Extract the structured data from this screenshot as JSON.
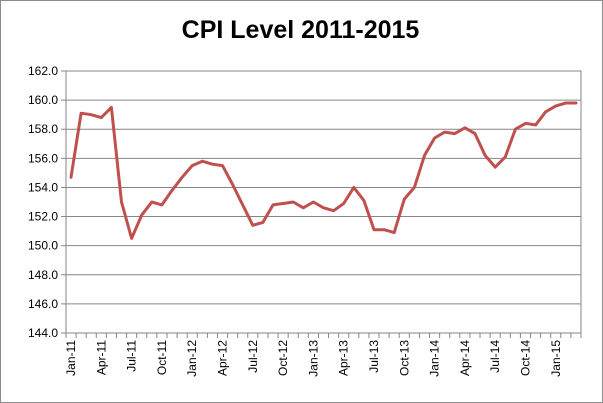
{
  "chart_data": {
    "type": "line",
    "title": "CPI Level 2011-2015",
    "xlabel": "",
    "ylabel": "",
    "ylim": [
      144.0,
      162.0
    ],
    "y_ticks": [
      "144.0",
      "146.0",
      "148.0",
      "150.0",
      "152.0",
      "154.0",
      "156.0",
      "158.0",
      "160.0",
      "162.0"
    ],
    "x_tick_labels": [
      "Jan-11",
      "Apr-11",
      "Jul-11",
      "Oct-11",
      "Jan-12",
      "Apr-12",
      "Jul-12",
      "Oct-12",
      "Jan-13",
      "Apr-13",
      "Jul-13",
      "Oct-13",
      "Jan-14",
      "Apr-14",
      "Jul-14",
      "Oct-14",
      "Jan-15"
    ],
    "grid": true,
    "legend": "none",
    "series": [
      {
        "color": "#c0504d",
        "x": [
          "Jan-11",
          "Feb-11",
          "Mar-11",
          "Apr-11",
          "May-11",
          "Jun-11",
          "Jul-11",
          "Aug-11",
          "Sep-11",
          "Oct-11",
          "Nov-11",
          "Dec-11",
          "Jan-12",
          "Feb-12",
          "Mar-12",
          "Apr-12",
          "May-12",
          "Jun-12",
          "Jul-12",
          "Aug-12",
          "Sep-12",
          "Oct-12",
          "Nov-12",
          "Dec-12",
          "Jan-13",
          "Feb-13",
          "Mar-13",
          "Apr-13",
          "May-13",
          "Jun-13",
          "Jul-13",
          "Aug-13",
          "Sep-13",
          "Oct-13",
          "Nov-13",
          "Dec-13",
          "Jan-14",
          "Feb-14",
          "Mar-14",
          "Apr-14",
          "May-14",
          "Jun-14",
          "Jul-14",
          "Aug-14",
          "Sep-14",
          "Oct-14",
          "Nov-14",
          "Dec-14",
          "Jan-15",
          "Feb-15",
          "Mar-15"
        ],
        "values": [
          154.7,
          159.1,
          159.0,
          158.8,
          159.5,
          153.0,
          150.5,
          152.1,
          153.0,
          152.8,
          153.8,
          154.7,
          155.5,
          155.8,
          155.6,
          155.5,
          154.2,
          152.8,
          151.4,
          151.6,
          152.8,
          152.9,
          153.0,
          152.6,
          153.0,
          152.6,
          152.4,
          152.9,
          154.0,
          153.1,
          151.1,
          151.1,
          150.9,
          153.2,
          154.0,
          156.2,
          157.4,
          157.8,
          157.7,
          158.1,
          157.7,
          156.2,
          155.4,
          156.1,
          158.0,
          158.4,
          158.3,
          159.2,
          159.6,
          159.8,
          159.8
        ]
      }
    ]
  }
}
